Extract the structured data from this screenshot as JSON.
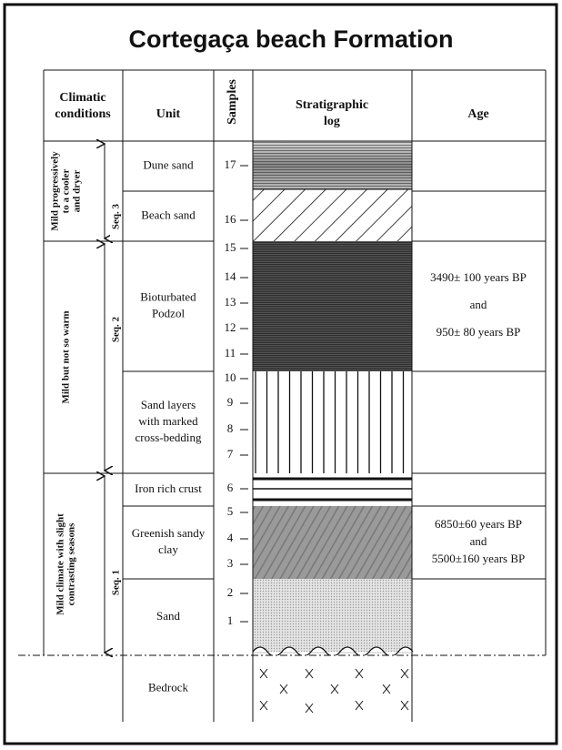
{
  "header": {
    "title": "Cortegaça beach Formation"
  },
  "columns": {
    "climatic": [
      "Climatic",
      "conditions"
    ],
    "unit": "Unit",
    "samples": "Samples",
    "log": [
      "Stratigraphic",
      "log"
    ],
    "age": "Age"
  },
  "sequences": [
    {
      "climate": [
        "Mild progressively",
        "to a cooler",
        "and dryer"
      ],
      "seq": "Seq. 3"
    },
    {
      "climate": [
        "Mild but not so warm"
      ],
      "seq": "Seq. 2"
    },
    {
      "climate": [
        "Mild climate with slight",
        "contrasting seasons"
      ],
      "seq": "Seq. 1"
    }
  ],
  "units": [
    [
      "Dune sand"
    ],
    [
      "Beach sand"
    ],
    [
      "Bioturbated",
      "Podzol"
    ],
    [
      "Sand layers",
      "with marked",
      "cross-bedding"
    ],
    [
      "Iron rich crust"
    ],
    [
      "Greenish sandy",
      "clay"
    ],
    [
      "Sand"
    ],
    [
      "Bedrock"
    ]
  ],
  "samples": [
    17,
    16,
    15,
    14,
    13,
    12,
    11,
    10,
    9,
    8,
    7,
    6,
    5,
    4,
    3,
    2,
    1
  ],
  "ages": [
    [
      "3490± 100 years BP",
      "and",
      "950± 80 years BP"
    ],
    [
      "6850±60 years BP",
      "and",
      "5500±160 years BP"
    ]
  ]
}
